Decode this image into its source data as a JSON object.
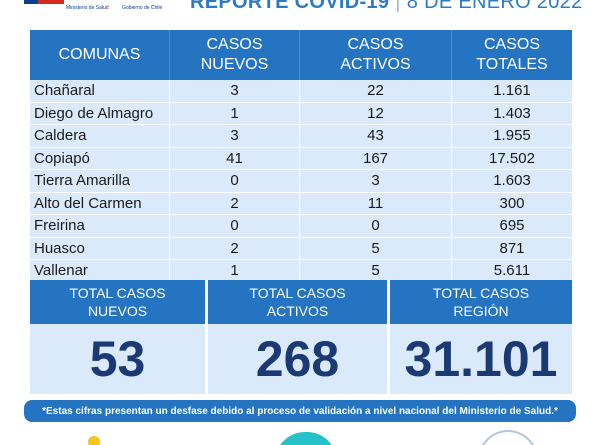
{
  "header": {
    "logo_left": "Ministerio de Salud",
    "logo_right": "Gobierno de Chile",
    "title": "REPORTE COVID-19",
    "separator": "|",
    "date": "8 DE ENERO 2022"
  },
  "table": {
    "headers": [
      {
        "line1": "COMUNAS",
        "line2": ""
      },
      {
        "line1": "CASOS",
        "line2": "NUEVOS"
      },
      {
        "line1": "CASOS",
        "line2": "ACTIVOS"
      },
      {
        "line1": "CASOS",
        "line2": "TOTALES"
      }
    ],
    "rows": [
      {
        "comuna": "Chañaral",
        "nuevos": "3",
        "activos": "22",
        "totales": "1.161"
      },
      {
        "comuna": "Diego de Almagro",
        "nuevos": "1",
        "activos": "12",
        "totales": "1.403"
      },
      {
        "comuna": "Caldera",
        "nuevos": "3",
        "activos": "43",
        "totales": "1.955"
      },
      {
        "comuna": "Copiapó",
        "nuevos": "41",
        "activos": "167",
        "totales": "17.502"
      },
      {
        "comuna": "Tierra Amarilla",
        "nuevos": "0",
        "activos": "3",
        "totales": "1.603"
      },
      {
        "comuna": "Alto del Carmen",
        "nuevos": "2",
        "activos": "11",
        "totales": "300"
      },
      {
        "comuna": "Freirina",
        "nuevos": "0",
        "activos": "0",
        "totales": "695"
      },
      {
        "comuna": "Huasco",
        "nuevos": "2",
        "activos": "5",
        "totales": "871"
      },
      {
        "comuna": "Vallenar",
        "nuevos": "1",
        "activos": "5",
        "totales": "5.611"
      }
    ]
  },
  "totals": [
    {
      "line1": "TOTAL CASOS",
      "line2": "NUEVOS",
      "value": "53"
    },
    {
      "line1": "TOTAL CASOS",
      "line2": "ACTIVOS",
      "value": "268"
    },
    {
      "line1": "TOTAL CASOS",
      "line2": "REGIÓN",
      "value": "31.101"
    }
  ],
  "disclaimer": "*Estas cifras presentan un desfase debido al proceso de validación a nivel nacional del Ministerio de Salud.*",
  "colors": {
    "header_blue": "#2474c2",
    "row_light": "#dbeafa",
    "total_number": "#1b3a73",
    "title_blue": "#2e7bc4"
  }
}
